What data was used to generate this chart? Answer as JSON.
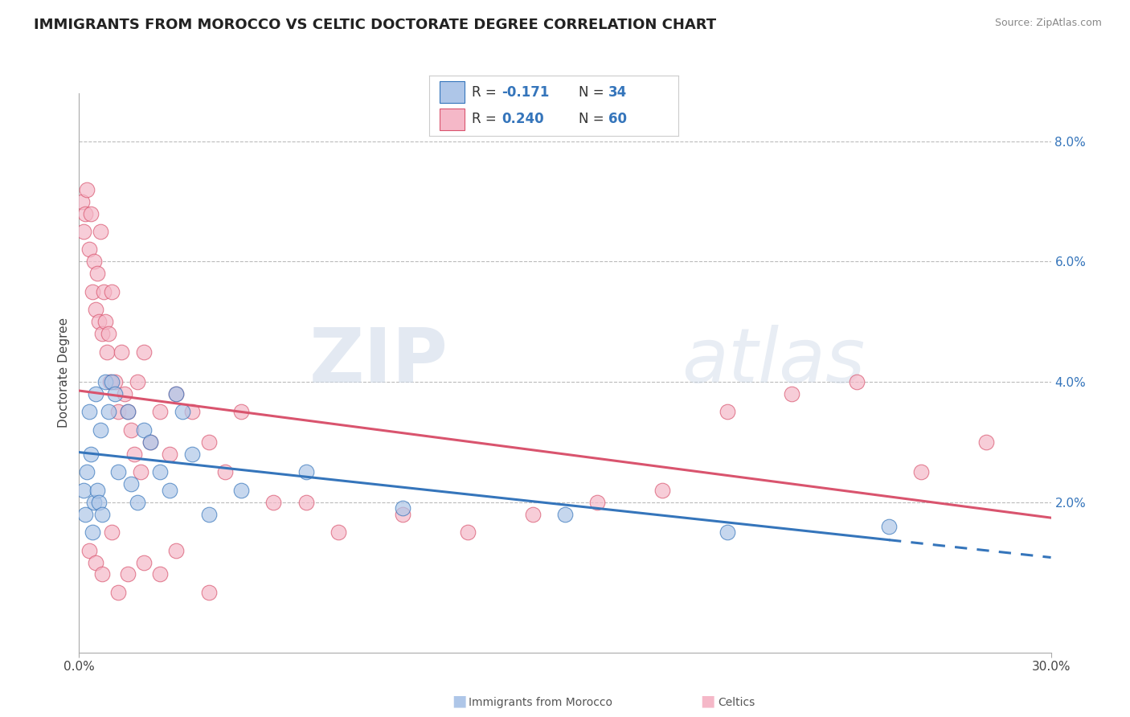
{
  "title": "IMMIGRANTS FROM MOROCCO VS CELTIC DOCTORATE DEGREE CORRELATION CHART",
  "source": "Source: ZipAtlas.com",
  "ylabel": "Doctorate Degree",
  "xlim": [
    0.0,
    30.0
  ],
  "ylim": [
    -0.5,
    8.8
  ],
  "y_ticks_right": [
    2.0,
    4.0,
    6.0,
    8.0
  ],
  "blue_color": "#aec6e8",
  "pink_color": "#f5b8c8",
  "blue_line_color": "#3575bb",
  "pink_line_color": "#d9546e",
  "watermark_zip": "ZIP",
  "watermark_atlas": "atlas",
  "background_color": "#ffffff",
  "grid_color": "#bbbbbb",
  "blue_scatter_x": [
    0.15,
    0.2,
    0.25,
    0.3,
    0.35,
    0.4,
    0.45,
    0.5,
    0.55,
    0.6,
    0.65,
    0.7,
    0.8,
    0.9,
    1.0,
    1.1,
    1.2,
    1.5,
    1.6,
    1.8,
    2.0,
    2.2,
    2.5,
    2.8,
    3.0,
    3.2,
    3.5,
    4.0,
    5.0,
    7.0,
    10.0,
    15.0,
    20.0,
    25.0
  ],
  "blue_scatter_y": [
    2.2,
    1.8,
    2.5,
    3.5,
    2.8,
    1.5,
    2.0,
    3.8,
    2.2,
    2.0,
    3.2,
    1.8,
    4.0,
    3.5,
    4.0,
    3.8,
    2.5,
    3.5,
    2.3,
    2.0,
    3.2,
    3.0,
    2.5,
    2.2,
    3.8,
    3.5,
    2.8,
    1.8,
    2.2,
    2.5,
    1.9,
    1.8,
    1.5,
    1.6
  ],
  "pink_scatter_x": [
    0.1,
    0.15,
    0.2,
    0.25,
    0.3,
    0.35,
    0.4,
    0.45,
    0.5,
    0.55,
    0.6,
    0.65,
    0.7,
    0.75,
    0.8,
    0.85,
    0.9,
    0.95,
    1.0,
    1.1,
    1.2,
    1.3,
    1.4,
    1.5,
    1.6,
    1.7,
    1.8,
    1.9,
    2.0,
    2.2,
    2.5,
    2.8,
    3.0,
    3.5,
    4.0,
    4.5,
    5.0,
    6.0,
    7.0,
    8.0,
    10.0,
    12.0,
    14.0,
    16.0,
    18.0,
    20.0,
    22.0,
    24.0,
    26.0,
    28.0,
    0.3,
    0.5,
    0.7,
    1.0,
    1.2,
    1.5,
    2.0,
    2.5,
    3.0,
    4.0
  ],
  "pink_scatter_y": [
    7.0,
    6.5,
    6.8,
    7.2,
    6.2,
    6.8,
    5.5,
    6.0,
    5.2,
    5.8,
    5.0,
    6.5,
    4.8,
    5.5,
    5.0,
    4.5,
    4.8,
    4.0,
    5.5,
    4.0,
    3.5,
    4.5,
    3.8,
    3.5,
    3.2,
    2.8,
    4.0,
    2.5,
    4.5,
    3.0,
    3.5,
    2.8,
    3.8,
    3.5,
    3.0,
    2.5,
    3.5,
    2.0,
    2.0,
    1.5,
    1.8,
    1.5,
    1.8,
    2.0,
    2.2,
    3.5,
    3.8,
    4.0,
    2.5,
    3.0,
    1.2,
    1.0,
    0.8,
    1.5,
    0.5,
    0.8,
    1.0,
    0.8,
    1.2,
    0.5
  ],
  "title_fontsize": 13,
  "label_fontsize": 11,
  "tick_fontsize": 11,
  "legend_fontsize": 12
}
